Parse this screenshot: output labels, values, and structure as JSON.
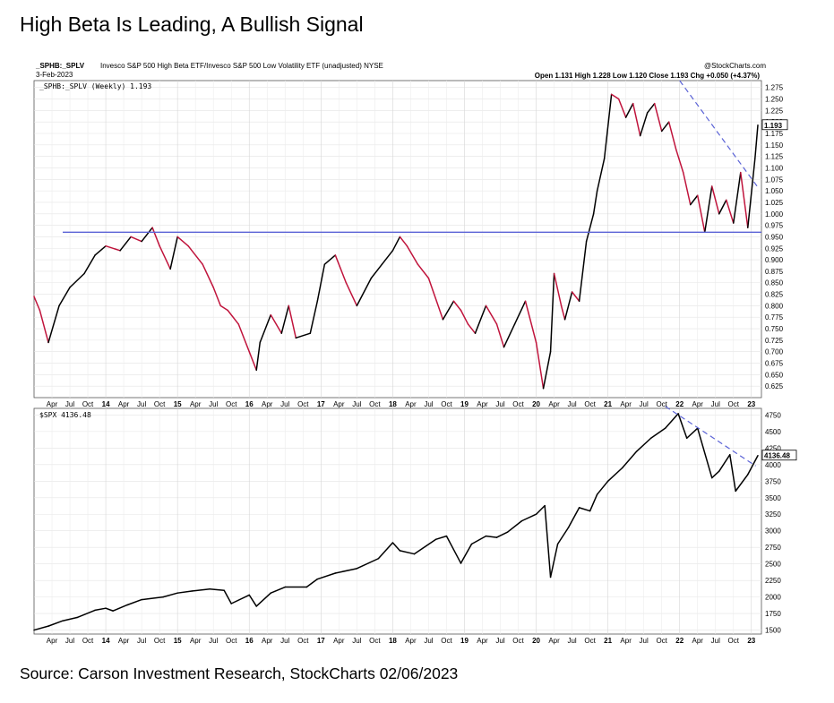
{
  "title": "High Beta Is Leading, A Bullish Signal",
  "source": "Source: Carson Investment Research, StockCharts 02/06/2023",
  "header": {
    "symbol": "_SPHB:_SPLV",
    "description": "Invesco S&P 500 High Beta ETF/Invesco S&P 500 Low Volatility ETF (unadjusted) NYSE",
    "date": "3-Feb-2023",
    "watermark": "@StockCharts.com",
    "quote": "Open 1.131  High 1.228  Low 1.120  Close 1.193  Chg +0.050 (+4.37%)"
  },
  "chart_data": [
    {
      "type": "line",
      "legend": "_SPHB:_SPLV (Weekly) 1.193",
      "last_value_label": "1.193",
      "ylim": [
        0.6,
        1.29
      ],
      "yticks": [
        "1.275",
        "1.250",
        "1.225",
        "1.200",
        "1.175",
        "1.150",
        "1.125",
        "1.100",
        "1.075",
        "1.050",
        "1.025",
        "1.000",
        "0.975",
        "0.950",
        "0.925",
        "0.900",
        "0.875",
        "0.850",
        "0.825",
        "0.800",
        "0.775",
        "0.750",
        "0.725",
        "0.700",
        "0.675",
        "0.650",
        "0.625"
      ],
      "up_color": "#000000",
      "down_color": "#c0143c",
      "x": [
        2013.0,
        2013.08,
        2013.2,
        2013.35,
        2013.5,
        2013.7,
        2013.85,
        2014.0,
        2014.2,
        2014.35,
        2014.5,
        2014.65,
        2014.75,
        2014.9,
        2015.0,
        2015.15,
        2015.35,
        2015.5,
        2015.6,
        2015.7,
        2015.85,
        2016.0,
        2016.1,
        2016.15,
        2016.3,
        2016.45,
        2016.55,
        2016.65,
        2016.85,
        2016.95,
        2017.05,
        2017.2,
        2017.35,
        2017.5,
        2017.7,
        2017.85,
        2018.0,
        2018.1,
        2018.2,
        2018.35,
        2018.5,
        2018.7,
        2018.85,
        2018.95,
        2019.05,
        2019.15,
        2019.3,
        2019.45,
        2019.55,
        2019.7,
        2019.85,
        2020.0,
        2020.1,
        2020.2,
        2020.25,
        2020.35,
        2020.4,
        2020.5,
        2020.6,
        2020.7,
        2020.8,
        2020.85,
        2020.95,
        2021.05,
        2021.15,
        2021.25,
        2021.35,
        2021.45,
        2021.55,
        2021.65,
        2021.75,
        2021.85,
        2021.95,
        2022.05,
        2022.15,
        2022.25,
        2022.35,
        2022.45,
        2022.55,
        2022.65,
        2022.75,
        2022.85,
        2022.95,
        2023.05,
        2023.09
      ],
      "values": [
        0.82,
        0.79,
        0.72,
        0.8,
        0.84,
        0.87,
        0.91,
        0.93,
        0.92,
        0.95,
        0.94,
        0.97,
        0.93,
        0.88,
        0.95,
        0.93,
        0.89,
        0.84,
        0.8,
        0.79,
        0.76,
        0.7,
        0.66,
        0.72,
        0.78,
        0.74,
        0.8,
        0.73,
        0.74,
        0.81,
        0.89,
        0.91,
        0.85,
        0.8,
        0.86,
        0.89,
        0.92,
        0.95,
        0.93,
        0.89,
        0.86,
        0.77,
        0.81,
        0.79,
        0.76,
        0.74,
        0.8,
        0.76,
        0.71,
        0.76,
        0.81,
        0.72,
        0.62,
        0.7,
        0.87,
        0.8,
        0.77,
        0.83,
        0.81,
        0.94,
        1.0,
        1.05,
        1.12,
        1.26,
        1.25,
        1.21,
        1.24,
        1.17,
        1.22,
        1.24,
        1.18,
        1.2,
        1.14,
        1.09,
        1.02,
        1.04,
        0.96,
        1.06,
        1.0,
        1.03,
        0.98,
        1.09,
        0.97,
        1.12,
        1.193
      ],
      "annotations": {
        "support_line_value": 0.96,
        "trendline": {
          "from": [
            2022.0,
            1.29
          ],
          "to": [
            2023.08,
            1.06
          ]
        }
      }
    },
    {
      "type": "line",
      "legend": "$SPX 4136.48",
      "last_value_label": "4136.48",
      "ylim": [
        1440,
        4850
      ],
      "yticks": [
        "4750",
        "4500",
        "4250",
        "4000",
        "3750",
        "3500",
        "3250",
        "3000",
        "2750",
        "2500",
        "2250",
        "2000",
        "1750",
        "1500"
      ],
      "color": "#000000",
      "x": [
        2013.0,
        2013.2,
        2013.4,
        2013.6,
        2013.85,
        2014.0,
        2014.1,
        2014.3,
        2014.5,
        2014.8,
        2015.0,
        2015.2,
        2015.45,
        2015.65,
        2015.75,
        2016.0,
        2016.1,
        2016.3,
        2016.5,
        2016.8,
        2016.95,
        2017.2,
        2017.5,
        2017.8,
        2018.0,
        2018.1,
        2018.3,
        2018.6,
        2018.75,
        2018.95,
        2019.1,
        2019.3,
        2019.45,
        2019.6,
        2019.8,
        2020.0,
        2020.12,
        2020.2,
        2020.3,
        2020.45,
        2020.6,
        2020.75,
        2020.85,
        2021.0,
        2021.2,
        2021.4,
        2021.6,
        2021.8,
        2021.98,
        2022.1,
        2022.25,
        2022.45,
        2022.55,
        2022.7,
        2022.78,
        2022.95,
        2023.09
      ],
      "values": [
        1500,
        1560,
        1640,
        1690,
        1800,
        1830,
        1790,
        1880,
        1960,
        2000,
        2060,
        2090,
        2120,
        2100,
        1900,
        2030,
        1860,
        2060,
        2150,
        2150,
        2270,
        2360,
        2430,
        2580,
        2820,
        2700,
        2650,
        2870,
        2920,
        2510,
        2800,
        2920,
        2900,
        2980,
        3150,
        3250,
        3380,
        2300,
        2800,
        3050,
        3350,
        3300,
        3550,
        3750,
        3950,
        4200,
        4400,
        4550,
        4770,
        4400,
        4550,
        3800,
        3900,
        4150,
        3600,
        3850,
        4136.48
      ]
    }
  ],
  "x_axis": {
    "years": [
      "14",
      "15",
      "16",
      "17",
      "18",
      "19",
      "20",
      "21",
      "22",
      "23"
    ],
    "months": [
      "Apr",
      "Jul",
      "Oct"
    ]
  }
}
